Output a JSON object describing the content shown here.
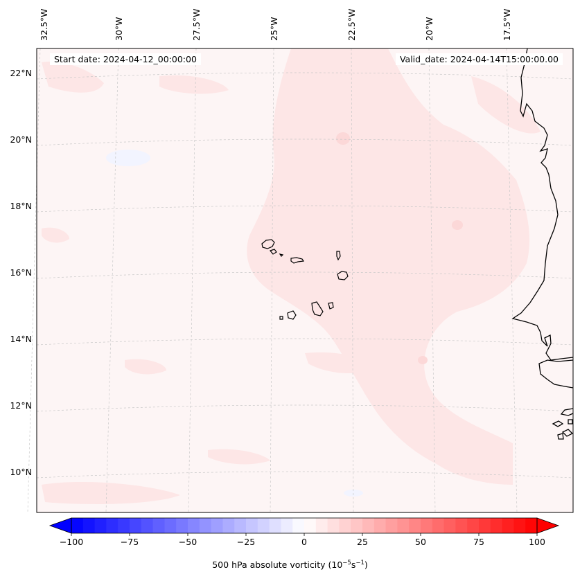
{
  "map": {
    "title_left": "Start date: 2024-04-12_00:00:00",
    "title_right": "Valid_date: 2024-04-14T15:00:00.00",
    "lon_labels": [
      "32.5°W",
      "30°W",
      "27.5°W",
      "25°W",
      "22.5°W",
      "20°W",
      "17.5°W"
    ],
    "lat_labels": [
      "22°N",
      "20°N",
      "18°N",
      "16°N",
      "14°N",
      "12°N",
      "10°N"
    ],
    "field_colors": {
      "background": "#fdf5f5",
      "light_positive": "#fde6e6",
      "medium_positive": "#fcdada",
      "slight_negative": "#f2f4ff",
      "coastline": "#000000",
      "gridline": "#b0b0b0"
    }
  },
  "colorbar": {
    "label_main": "500 hPa absolute vorticity (10",
    "label_sup1": "−5",
    "label_mid": "s",
    "label_sup2": "−1",
    "label_end": ")",
    "ticks": [
      "−100",
      "−75",
      "−50",
      "−25",
      "0",
      "25",
      "50",
      "75",
      "100"
    ],
    "vmin": -100,
    "vmax": 100,
    "levels": 41,
    "cmap": "bwr",
    "extend": "both"
  }
}
